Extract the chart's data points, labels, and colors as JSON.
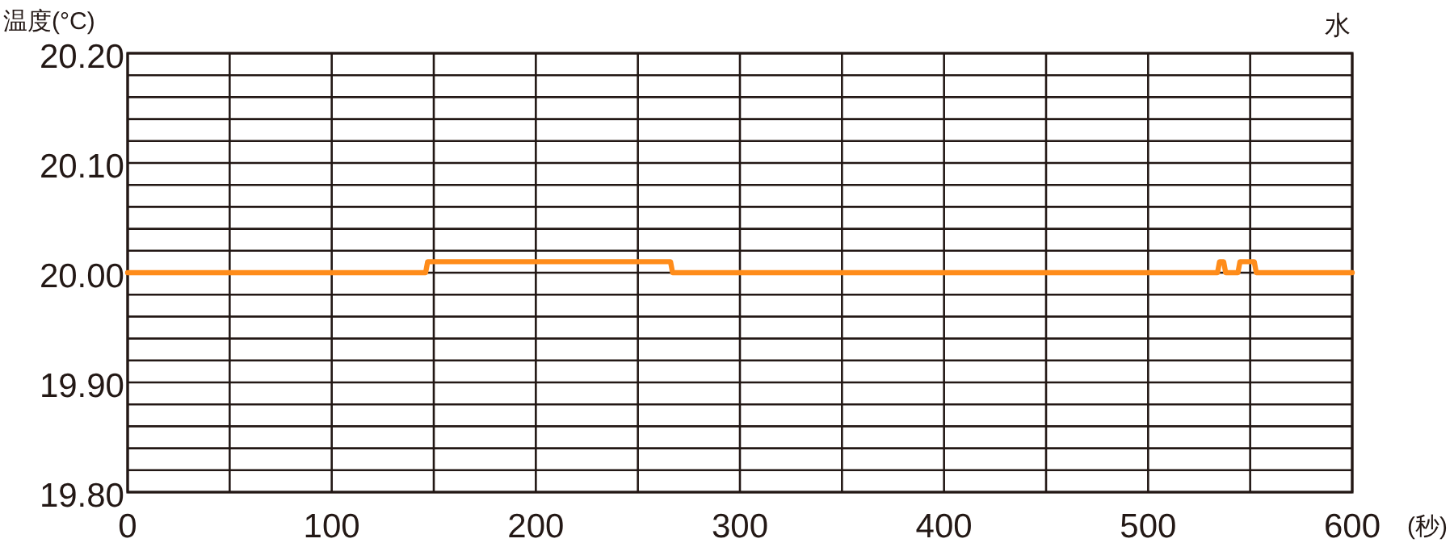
{
  "chart_data": {
    "type": "line",
    "title": "水",
    "ylabel": "温度(°C)",
    "xlabel": "(秒)",
    "series": [
      {
        "color": "#ff8c1a",
        "x": [
          0,
          146,
          147,
          266,
          267,
          534,
          535,
          537,
          538,
          540,
          544,
          545,
          552,
          553,
          600
        ],
        "values": [
          20.0,
          20.0,
          20.01,
          20.01,
          20.0,
          20.0,
          20.01,
          20.01,
          20.0,
          20.0,
          20.0,
          20.01,
          20.01,
          20.0,
          20.0
        ]
      }
    ],
    "xlim": [
      0,
      600
    ],
    "ylim": [
      19.8,
      20.2
    ],
    "xticks": [
      0,
      {
        "value": 50,
        "label": null
      },
      100,
      {
        "value": 150,
        "label": null
      },
      200,
      {
        "value": 250,
        "label": null
      },
      300,
      {
        "value": 350,
        "label": null
      },
      400,
      {
        "value": 450,
        "label": null
      },
      500,
      {
        "value": 550,
        "label": null
      },
      600
    ],
    "yticks": [
      {
        "value": 19.8,
        "label": "19.80"
      },
      {
        "value": 19.82,
        "label": null
      },
      {
        "value": 19.84,
        "label": null
      },
      {
        "value": 19.86,
        "label": null
      },
      {
        "value": 19.88,
        "label": null
      },
      {
        "value": 19.9,
        "label": "19.90"
      },
      {
        "value": 19.92,
        "label": null
      },
      {
        "value": 19.94,
        "label": null
      },
      {
        "value": 19.96,
        "label": null
      },
      {
        "value": 19.98,
        "label": null
      },
      {
        "value": 20.0,
        "label": "20.00"
      },
      {
        "value": 20.02,
        "label": null
      },
      {
        "value": 20.04,
        "label": null
      },
      {
        "value": 20.06,
        "label": null
      },
      {
        "value": 20.08,
        "label": null
      },
      {
        "value": 20.1,
        "label": "20.10"
      },
      {
        "value": 20.12,
        "label": null
      },
      {
        "value": 20.14,
        "label": null
      },
      {
        "value": 20.16,
        "label": null
      },
      {
        "value": 20.18,
        "label": null
      },
      {
        "value": 20.2,
        "label": "20.20"
      }
    ],
    "grid": true,
    "marker": "none",
    "line_style": "solid"
  }
}
